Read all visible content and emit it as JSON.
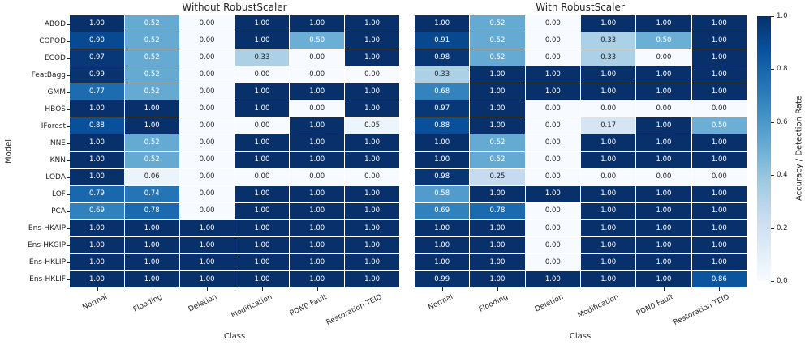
{
  "figure": {
    "background": "#ffffff",
    "text_color": "#262626",
    "annot_text_light": "#ffffff",
    "annot_text_dark": "#262626"
  },
  "axes": {
    "xlabel": "Class",
    "ylabel": "Model"
  },
  "colorbar": {
    "label": "Accuracy / Detection Rate",
    "colormap": "Blues",
    "min": 0.0,
    "max": 1.0,
    "tick_labels": [
      "1.0",
      "0.8",
      "0.6",
      "0.4",
      "0.2",
      "0.0"
    ],
    "tick_values": [
      1.0,
      0.8,
      0.6,
      0.4,
      0.2,
      0.0
    ]
  },
  "chart_data": [
    {
      "type": "heatmap",
      "title": "Without RobustScaler",
      "xlabel": "Class",
      "ylabel": "Model",
      "colormap": "Blues",
      "vmin": 0.0,
      "vmax": 1.0,
      "annot_format": ".2f",
      "columns": [
        "Normal",
        "Flooding",
        "Deletion",
        "Modification",
        "PDN0 Fault",
        "Restoration TEID"
      ],
      "rows": [
        "ABOD",
        "COPOD",
        "ECOD",
        "FeatBagg",
        "GMM",
        "HBOS",
        "IForest",
        "INNE",
        "KNN",
        "LODA",
        "LOF",
        "PCA",
        "Ens-HKAIP",
        "Ens-HKGIP",
        "Ens-HKLIP",
        "Ens-HKLIF"
      ],
      "values": [
        [
          1.0,
          0.52,
          0.0,
          1.0,
          1.0,
          1.0
        ],
        [
          0.9,
          0.52,
          0.0,
          1.0,
          0.5,
          1.0
        ],
        [
          0.97,
          0.52,
          0.0,
          0.33,
          0.0,
          1.0
        ],
        [
          0.99,
          0.52,
          0.0,
          0.0,
          0.0,
          0.0
        ],
        [
          0.77,
          0.52,
          0.0,
          1.0,
          1.0,
          1.0
        ],
        [
          1.0,
          1.0,
          0.0,
          1.0,
          0.0,
          1.0
        ],
        [
          0.88,
          1.0,
          0.0,
          0.0,
          1.0,
          0.05
        ],
        [
          1.0,
          0.52,
          0.0,
          1.0,
          1.0,
          1.0
        ],
        [
          1.0,
          0.52,
          0.0,
          1.0,
          1.0,
          1.0
        ],
        [
          1.0,
          0.06,
          0.0,
          0.0,
          0.0,
          0.0
        ],
        [
          0.79,
          0.74,
          0.0,
          1.0,
          1.0,
          1.0
        ],
        [
          0.69,
          0.78,
          0.0,
          1.0,
          1.0,
          1.0
        ],
        [
          1.0,
          1.0,
          1.0,
          1.0,
          1.0,
          1.0
        ],
        [
          1.0,
          1.0,
          1.0,
          1.0,
          1.0,
          1.0
        ],
        [
          1.0,
          1.0,
          1.0,
          1.0,
          1.0,
          1.0
        ],
        [
          1.0,
          1.0,
          1.0,
          1.0,
          1.0,
          1.0
        ]
      ]
    },
    {
      "type": "heatmap",
      "title": "With RobustScaler",
      "xlabel": "Class",
      "ylabel": "",
      "colormap": "Blues",
      "vmin": 0.0,
      "vmax": 1.0,
      "annot_format": ".2f",
      "columns": [
        "Normal",
        "Flooding",
        "Deletion",
        "Modification",
        "PDN0 Fault",
        "Restoration TEID"
      ],
      "rows": [
        "ABOD",
        "COPOD",
        "ECOD",
        "FeatBagg",
        "GMM",
        "HBOS",
        "IForest",
        "INNE",
        "KNN",
        "LODA",
        "LOF",
        "PCA",
        "Ens-HKAIP",
        "Ens-HKGIP",
        "Ens-HKLIP",
        "Ens-HKLIF"
      ],
      "values": [
        [
          1.0,
          0.52,
          0.0,
          1.0,
          1.0,
          1.0
        ],
        [
          0.91,
          0.52,
          0.0,
          0.33,
          0.5,
          1.0
        ],
        [
          0.98,
          0.52,
          0.0,
          0.33,
          0.0,
          1.0
        ],
        [
          0.33,
          1.0,
          1.0,
          1.0,
          1.0,
          1.0
        ],
        [
          0.68,
          1.0,
          1.0,
          1.0,
          1.0,
          1.0
        ],
        [
          0.97,
          1.0,
          0.0,
          0.0,
          0.0,
          0.0
        ],
        [
          0.88,
          1.0,
          0.0,
          0.17,
          1.0,
          0.5
        ],
        [
          1.0,
          0.52,
          0.0,
          1.0,
          1.0,
          1.0
        ],
        [
          1.0,
          0.52,
          0.0,
          1.0,
          1.0,
          1.0
        ],
        [
          0.98,
          0.25,
          0.0,
          0.0,
          0.0,
          0.0
        ],
        [
          0.58,
          1.0,
          1.0,
          1.0,
          1.0,
          1.0
        ],
        [
          0.69,
          0.78,
          0.0,
          1.0,
          1.0,
          1.0
        ],
        [
          1.0,
          1.0,
          0.0,
          1.0,
          1.0,
          1.0
        ],
        [
          1.0,
          1.0,
          0.0,
          1.0,
          1.0,
          1.0
        ],
        [
          1.0,
          1.0,
          0.0,
          1.0,
          1.0,
          1.0
        ],
        [
          0.99,
          1.0,
          1.0,
          1.0,
          1.0,
          0.86
        ]
      ]
    }
  ]
}
